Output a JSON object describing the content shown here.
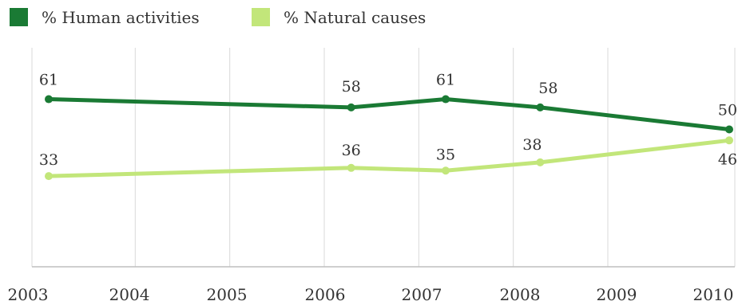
{
  "chart_data": {
    "type": "line",
    "x": [
      2003,
      2006.2,
      2007.2,
      2008.2,
      2010.2
    ],
    "xticks": [
      "2003",
      "2004",
      "2005",
      "2006",
      "2007",
      "2008",
      "2009",
      "2010"
    ],
    "xlim": [
      2003,
      2010.2
    ],
    "ylim": [
      0,
      100
    ],
    "grid": true,
    "legend": "top-left",
    "series": [
      {
        "name": "% Human activities",
        "values": [
          61,
          58,
          61,
          58,
          50
        ],
        "labels": [
          "61",
          "58",
          "61",
          "58",
          "50"
        ],
        "color": "#1a7a34"
      },
      {
        "name": "% Natural causes",
        "values": [
          33,
          36,
          35,
          38,
          46
        ],
        "labels": [
          "33",
          "36",
          "35",
          "38",
          "46"
        ],
        "color": "#c2e67a"
      }
    ]
  }
}
